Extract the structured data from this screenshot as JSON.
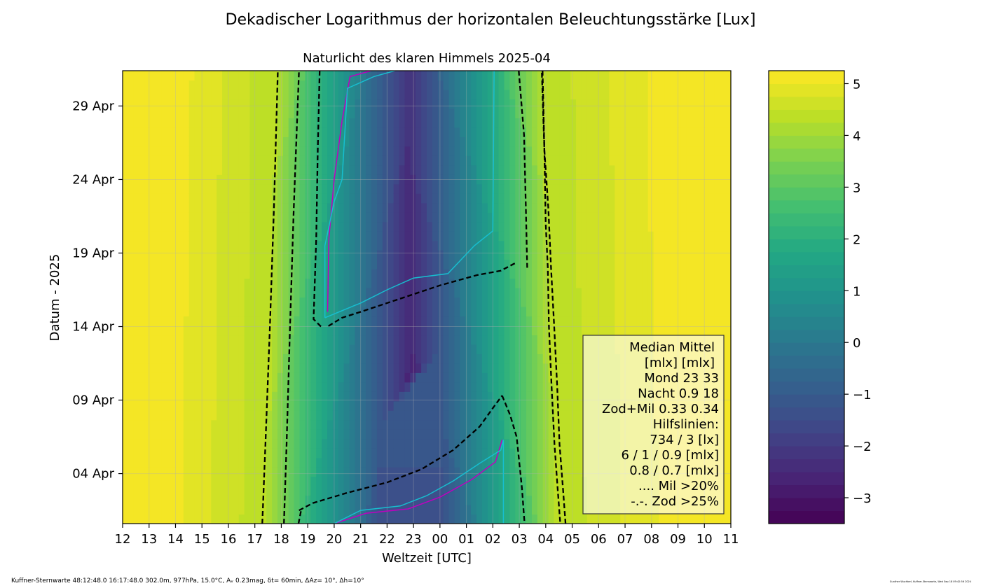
{
  "chart_data": {
    "type": "heatmap",
    "title": "Dekadischer Logarithmus der horizontalen Beleuchtungsstärke [Lux]",
    "subtitle": "Naturlicht des klaren Himmels 2025-04",
    "xlabel": "Weltzeit [UTC]",
    "ylabel": "Datum - 2025",
    "x_tick_labels": [
      "12",
      "13",
      "14",
      "15",
      "16",
      "17",
      "18",
      "19",
      "20",
      "21",
      "22",
      "23",
      "00",
      "01",
      "02",
      "03",
      "04",
      "05",
      "06",
      "07",
      "08",
      "09",
      "10",
      "11"
    ],
    "y_tick_labels": [
      "04 Apr",
      "09 Apr",
      "14 Apr",
      "19 Apr",
      "24 Apr",
      "29 Apr"
    ],
    "y_ticks_day": [
      4,
      9,
      14,
      19,
      24,
      29
    ],
    "ylim_day": [
      0.6,
      31.4
    ],
    "xlim_hours_from_12": [
      0,
      23
    ],
    "colorbar": {
      "range": [
        -3.5,
        5.25
      ],
      "ticks": [
        -3,
        -2,
        -1,
        0,
        1,
        2,
        3,
        4,
        5
      ],
      "tick_labels": [
        "−3",
        "−2",
        "−1",
        "0",
        "1",
        "2",
        "3",
        "4",
        "5"
      ],
      "levels": 35
    },
    "dashed_contours": [
      {
        "name": "734 lx",
        "points": [
          [
            5.28,
            0.6
          ],
          [
            5.4,
            6
          ],
          [
            5.57,
            14
          ],
          [
            5.72,
            22
          ],
          [
            5.87,
            31.4
          ]
        ]
      },
      {
        "name": "3 lx",
        "points": [
          [
            6.1,
            0.6
          ],
          [
            6.2,
            6
          ],
          [
            6.33,
            14
          ],
          [
            6.47,
            22
          ],
          [
            6.67,
            31.4
          ]
        ]
      },
      {
        "name": "6 mlx evening",
        "points": [
          [
            6.65,
            0.6
          ],
          [
            6.75,
            1.5
          ]
        ]
      },
      {
        "name": "6 mlx morning",
        "points": [
          [
            14.98,
            31.4
          ],
          [
            15.18,
            27
          ],
          [
            15.25,
            22
          ],
          [
            15.3,
            18
          ]
        ]
      },
      {
        "name": "1 mlx evening",
        "points": [
          [
            7.45,
            31.4
          ],
          [
            7.38,
            26
          ],
          [
            7.32,
            20
          ],
          [
            7.22,
            14.5
          ],
          [
            7.5,
            14
          ]
        ]
      },
      {
        "name": "1 mlx morning",
        "points": [
          [
            14.83,
            18.3
          ],
          [
            14.3,
            17.8
          ],
          [
            13.4,
            17.5
          ],
          [
            12.0,
            16.8
          ],
          [
            10.5,
            15.9
          ],
          [
            9.0,
            15.0
          ],
          [
            8.3,
            14.6
          ],
          [
            7.75,
            14
          ]
        ]
      },
      {
        "name": "0.9 mlx evening",
        "points": [
          [
            6.67,
            1.5
          ],
          [
            7.2,
            2.0
          ],
          [
            8.5,
            2.7
          ],
          [
            10,
            3.4
          ],
          [
            11.3,
            4.3
          ],
          [
            12.5,
            5.6
          ],
          [
            13.5,
            7.2
          ],
          [
            14.1,
            8.7
          ],
          [
            14.35,
            9.3
          ]
        ]
      },
      {
        "name": "0.9 mlx morning",
        "points": [
          [
            14.35,
            9.3
          ],
          [
            14.65,
            8.0
          ],
          [
            14.9,
            6.5
          ],
          [
            15.1,
            3.0
          ],
          [
            15.2,
            0.6
          ]
        ]
      },
      {
        "name": "0.8 mlx morning",
        "points": [
          [
            15.88,
            31.4
          ],
          [
            15.95,
            26
          ],
          [
            16.0,
            21
          ],
          [
            16.08,
            18
          ],
          [
            16.12,
            14
          ],
          [
            16.22,
            10
          ],
          [
            16.33,
            6
          ],
          [
            16.45,
            3
          ],
          [
            16.55,
            0.6
          ]
        ]
      },
      {
        "name": "0.7 mlx morning",
        "points": [
          [
            16.75,
            0.6
          ],
          [
            16.65,
            3
          ],
          [
            16.52,
            6
          ],
          [
            16.43,
            10
          ],
          [
            16.32,
            14
          ],
          [
            16.2,
            18
          ],
          [
            16.1,
            22
          ],
          [
            15.95,
            26
          ],
          [
            15.85,
            31.4
          ]
        ]
      }
    ],
    "cyan_contours": [
      {
        "name": "Mil >20% a",
        "points": [
          [
            7.65,
            14.6
          ],
          [
            7.65,
            19.5
          ],
          [
            8.0,
            22.5
          ],
          [
            8.3,
            24
          ],
          [
            8.5,
            30.2
          ],
          [
            9.5,
            31.0
          ],
          [
            10.3,
            31.4
          ]
        ]
      },
      {
        "name": "Mil >20% b",
        "points": [
          [
            7.65,
            14.6
          ],
          [
            9.0,
            15.6
          ],
          [
            10.0,
            16.5
          ],
          [
            11.0,
            17.3
          ],
          [
            12.3,
            17.6
          ],
          [
            13.3,
            19.5
          ],
          [
            14.0,
            20.5
          ],
          [
            14.05,
            31.4
          ]
        ]
      },
      {
        "name": "Mil >20% c",
        "points": [
          [
            8.0,
            0.6
          ],
          [
            9.0,
            1.5
          ],
          [
            10.5,
            1.8
          ],
          [
            11.5,
            2.5
          ],
          [
            12.5,
            3.5
          ],
          [
            13.5,
            4.7
          ],
          [
            14.3,
            5.6
          ],
          [
            14.4,
            6.3
          ],
          [
            14.4,
            0.6
          ]
        ]
      }
    ],
    "magenta_contours": [
      {
        "name": "Zod >25% a",
        "points": [
          [
            7.75,
            15.0
          ],
          [
            7.8,
            20
          ],
          [
            8.0,
            24
          ],
          [
            8.3,
            28
          ],
          [
            8.6,
            31.0
          ],
          [
            9.4,
            31.4
          ]
        ]
      },
      {
        "name": "Zod >25% b",
        "points": [
          [
            8.0,
            0.6
          ],
          [
            9.2,
            1.3
          ],
          [
            10.8,
            1.6
          ],
          [
            12.0,
            2.4
          ],
          [
            13.2,
            3.6
          ],
          [
            14.1,
            4.8
          ],
          [
            14.35,
            6.3
          ]
        ]
      }
    ]
  },
  "legend": {
    "lines": [
      "Median Mittel",
      "[mlx]  [mlx]",
      "Mond   23  33",
      "Nacht 0.9  18",
      "Zod+Mil 0.33  0.34",
      "Hilfslinien:",
      "734 / 3  [lx]",
      "6 /  1 / 0.9 [mlx]",
      "0.8 / 0.7 [mlx]",
      ".... Mil >20%",
      "-.-. Zod >25%"
    ]
  },
  "footer": {
    "left": "Kuffner-Sternwarte 48:12:48.0 16:17:48.0 302.0m,  977hPa, 15.0°C, Aᵥ 0.23mag, δt= 60min, ΔAz= 10°, Δh=10°",
    "right": "Gunther Wuchterl, Kuffner-Sternwarte, Wed Sep 18 09:42:56 2024"
  },
  "colors": {
    "viridis_low": "#440154",
    "viridis_mid": "#21918c",
    "viridis_high": "#fde725",
    "dashed_line": "#000000",
    "cyan_line": "#17becf",
    "magenta_line": "#bf00bf"
  }
}
